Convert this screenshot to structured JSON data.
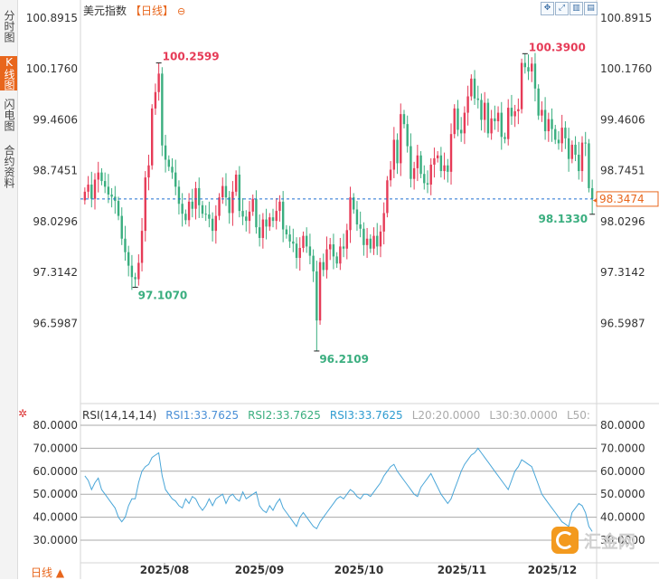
{
  "sidebar": {
    "tabs": [
      {
        "label": "分时图",
        "active": false
      },
      {
        "label": "K线图",
        "active": true
      },
      {
        "label": "闪电图",
        "active": false
      },
      {
        "label": "合约资料",
        "active": false
      }
    ]
  },
  "header": {
    "name": "美元指数",
    "period": "【日线】",
    "gear_icon": "⊖"
  },
  "toolbar": {
    "icons": [
      "move-icon",
      "fullscreen-icon",
      "bars-icon",
      "chart-icon",
      "more-icon"
    ]
  },
  "footer": {
    "period_button": "日线 ▲"
  },
  "watermark": {
    "text": "汇金网"
  },
  "colors": {
    "up": "#e63b57",
    "down": "#3aae7f",
    "accent": "#e8661c",
    "rsi_line": "#4aa6d8",
    "guide": "#1f6fd0"
  },
  "chart_data": [
    {
      "type": "candlestick",
      "title": "美元指数【日线】",
      "y_ticks": [
        "100.8915",
        "100.1760",
        "99.4606",
        "98.7451",
        "98.0296",
        "97.3142",
        "96.5987"
      ],
      "ylim": [
        96.21,
        100.89
      ],
      "x_ticks": [
        "2025/08",
        "2025/09",
        "2025/10",
        "2025/11",
        "2025/12"
      ],
      "current_price": "98.3474",
      "annotations": [
        {
          "label": "100.2599",
          "type": "high"
        },
        {
          "label": "97.1070",
          "type": "low"
        },
        {
          "label": "96.2109",
          "type": "low"
        },
        {
          "label": "100.3900",
          "type": "high"
        },
        {
          "label": "98.1330",
          "type": "low"
        }
      ],
      "close": [
        98.45,
        98.55,
        98.35,
        98.62,
        98.72,
        98.6,
        98.52,
        98.41,
        98.38,
        98.32,
        98.11,
        97.79,
        97.6,
        97.41,
        97.25,
        97.22,
        97.45,
        97.9,
        98.65,
        98.82,
        99.62,
        99.85,
        100.11,
        99.1,
        98.9,
        98.8,
        98.72,
        98.52,
        98.28,
        98.14,
        98.05,
        98.31,
        98.21,
        98.5,
        98.26,
        98.14,
        98.13,
        98.07,
        97.9,
        98.11,
        98.37,
        98.53,
        98.37,
        98.15,
        98.45,
        98.69,
        98.18,
        98.1,
        98.04,
        98.17,
        98.35,
        97.95,
        97.8,
        98.06,
        97.96,
        98.09,
        98.04,
        98.18,
        98.31,
        97.92,
        97.85,
        97.75,
        97.72,
        97.52,
        97.66,
        97.83,
        97.68,
        97.55,
        97.33,
        96.64,
        97.46,
        97.35,
        97.64,
        97.71,
        97.54,
        97.44,
        97.68,
        97.65,
        97.91,
        98.37,
        98.2,
        97.99,
        97.93,
        97.7,
        97.79,
        97.65,
        97.83,
        97.68,
        97.89,
        98.15,
        98.61,
        98.76,
        99.18,
        98.85,
        99.54,
        99.4,
        99.09,
        98.63,
        98.78,
        98.96,
        98.7,
        98.57,
        98.55,
        98.83,
        98.92,
        98.96,
        98.74,
        98.82,
        98.73,
        99.26,
        99.62,
        99.32,
        99.27,
        99.56,
        99.79,
        100.04,
        99.76,
        99.74,
        99.46,
        99.7,
        99.27,
        99.48,
        99.44,
        99.56,
        99.22,
        99.19,
        99.63,
        99.51,
        99.58,
        99.61,
        100.26,
        100.2,
        100.14,
        100.25,
        99.9,
        99.52,
        99.6,
        99.3,
        99.47,
        99.33,
        99.18,
        99.13,
        99.35,
        99.2,
        98.91,
        99.11,
        98.97,
        98.74,
        99.14,
        99.13,
        98.5,
        98.35
      ],
      "rsi": {
        "header": "RSI(14,14,14)",
        "rsi1": "RSI1:33.7625",
        "rsi2": "RSI2:33.7625",
        "rsi3": "RSI3:33.7625",
        "l20": "L20:20.0000",
        "l30": "L30:30.0000",
        "l50": "L50:",
        "y_ticks": [
          "80.0000",
          "70.0000",
          "60.0000",
          "50.0000",
          "40.0000",
          "30.0000"
        ],
        "values": [
          58,
          56,
          52,
          55,
          57,
          52,
          50,
          48,
          46,
          44,
          40,
          38,
          40,
          45,
          48,
          48,
          55,
          60,
          62,
          63,
          66,
          67,
          68,
          58,
          52,
          50,
          48,
          47,
          45,
          44,
          48,
          46,
          49,
          48,
          45,
          43,
          45,
          48,
          45,
          48,
          49,
          50,
          46,
          49,
          50,
          48,
          47,
          51,
          48,
          49,
          50,
          51,
          45,
          43,
          42,
          45,
          43,
          46,
          48,
          44,
          42,
          40,
          38,
          36,
          40,
          42,
          40,
          38,
          36,
          35,
          38,
          40,
          42,
          44,
          46,
          48,
          49,
          48,
          50,
          52,
          51,
          49,
          48,
          50,
          50,
          49,
          51,
          53,
          55,
          58,
          60,
          62,
          63,
          60,
          58,
          56,
          54,
          52,
          50,
          49,
          53,
          55,
          57,
          59,
          56,
          53,
          50,
          48,
          46,
          48,
          52,
          56,
          60,
          63,
          65,
          67,
          68,
          70,
          68,
          66,
          64,
          62,
          60,
          58,
          56,
          54,
          52,
          56,
          60,
          62,
          65,
          64,
          63,
          62,
          58,
          54,
          50,
          48,
          46,
          44,
          42,
          40,
          38,
          37,
          36,
          42,
          44,
          46,
          45,
          42,
          36,
          33.76
        ]
      }
    }
  ]
}
